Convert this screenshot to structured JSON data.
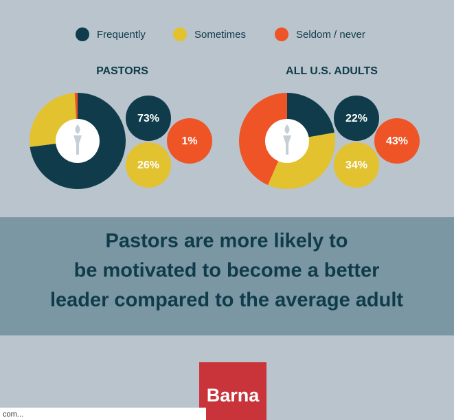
{
  "chart_data": [
    {
      "type": "pie",
      "title": "PASTORS",
      "categories": [
        "Frequently",
        "Sometimes",
        "Seldom / never"
      ],
      "colors": [
        "#0f3b4a",
        "#e3c22f",
        "#ee5426"
      ],
      "values": [
        73,
        26,
        1
      ],
      "value_labels": [
        "73%",
        "26%",
        "1%"
      ]
    },
    {
      "type": "pie",
      "title": "ALL U.S. ADULTS",
      "values": [
        22,
        34,
        43
      ],
      "value_labels": [
        "22%",
        "34%",
        "43%"
      ]
    }
  ],
  "headline": [
    "Pastors are more likely to",
    "be motivated to become a better",
    "leader compared to the average adult"
  ],
  "logo": "Barna",
  "footer": "com..."
}
